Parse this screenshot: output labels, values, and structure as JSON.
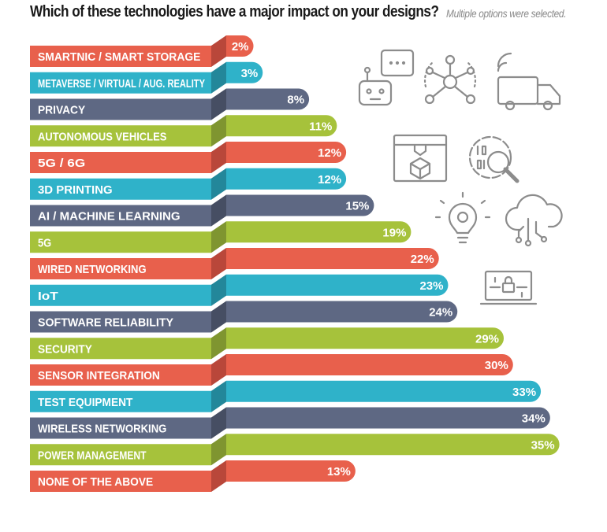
{
  "chart_data": {
    "type": "bar",
    "orientation": "horizontal",
    "title": "Which of these technologies have a major impact on your designs?",
    "subtitle": "Multiple options were selected.",
    "categories": [
      "SMARTNIC / SMART STORAGE",
      "METAVERSE / VIRTUAL / AUG. REALITY",
      "PRIVACY",
      "AUTONOMOUS VEHICLES",
      "5G / 6G",
      "3D PRINTING",
      "AI / MACHINE LEARNING",
      "5G",
      "WIRED NETWORKING",
      "IoT",
      "SOFTWARE RELIABILITY",
      "SECURITY",
      "SENSOR INTEGRATION",
      "TEST EQUIPMENT",
      "WIRELESS NETWORKING",
      "POWER MANAGEMENT",
      "NONE OF THE ABOVE"
    ],
    "values": [
      2,
      3,
      8,
      11,
      12,
      12,
      15,
      19,
      22,
      23,
      24,
      29,
      30,
      33,
      34,
      35,
      13
    ],
    "value_labels": [
      "2%",
      "3%",
      "8%",
      "11%",
      "12%",
      "12%",
      "15%",
      "19%",
      "22%",
      "23%",
      "24%",
      "29%",
      "30%",
      "33%",
      "34%",
      "35%",
      "13%"
    ],
    "unit": "%",
    "colors": [
      "#e8604c",
      "#2fb2c9",
      "#5e6883",
      "#a6c23b"
    ],
    "grid": false,
    "legend": "none"
  },
  "icons": [
    "robot-chat-icon",
    "network-hub-icon",
    "connected-truck-icon",
    "3d-printer-icon",
    "data-search-icon",
    "lightbulb-gear-icon",
    "cloud-circuit-icon",
    "laptop-lock-icon"
  ]
}
